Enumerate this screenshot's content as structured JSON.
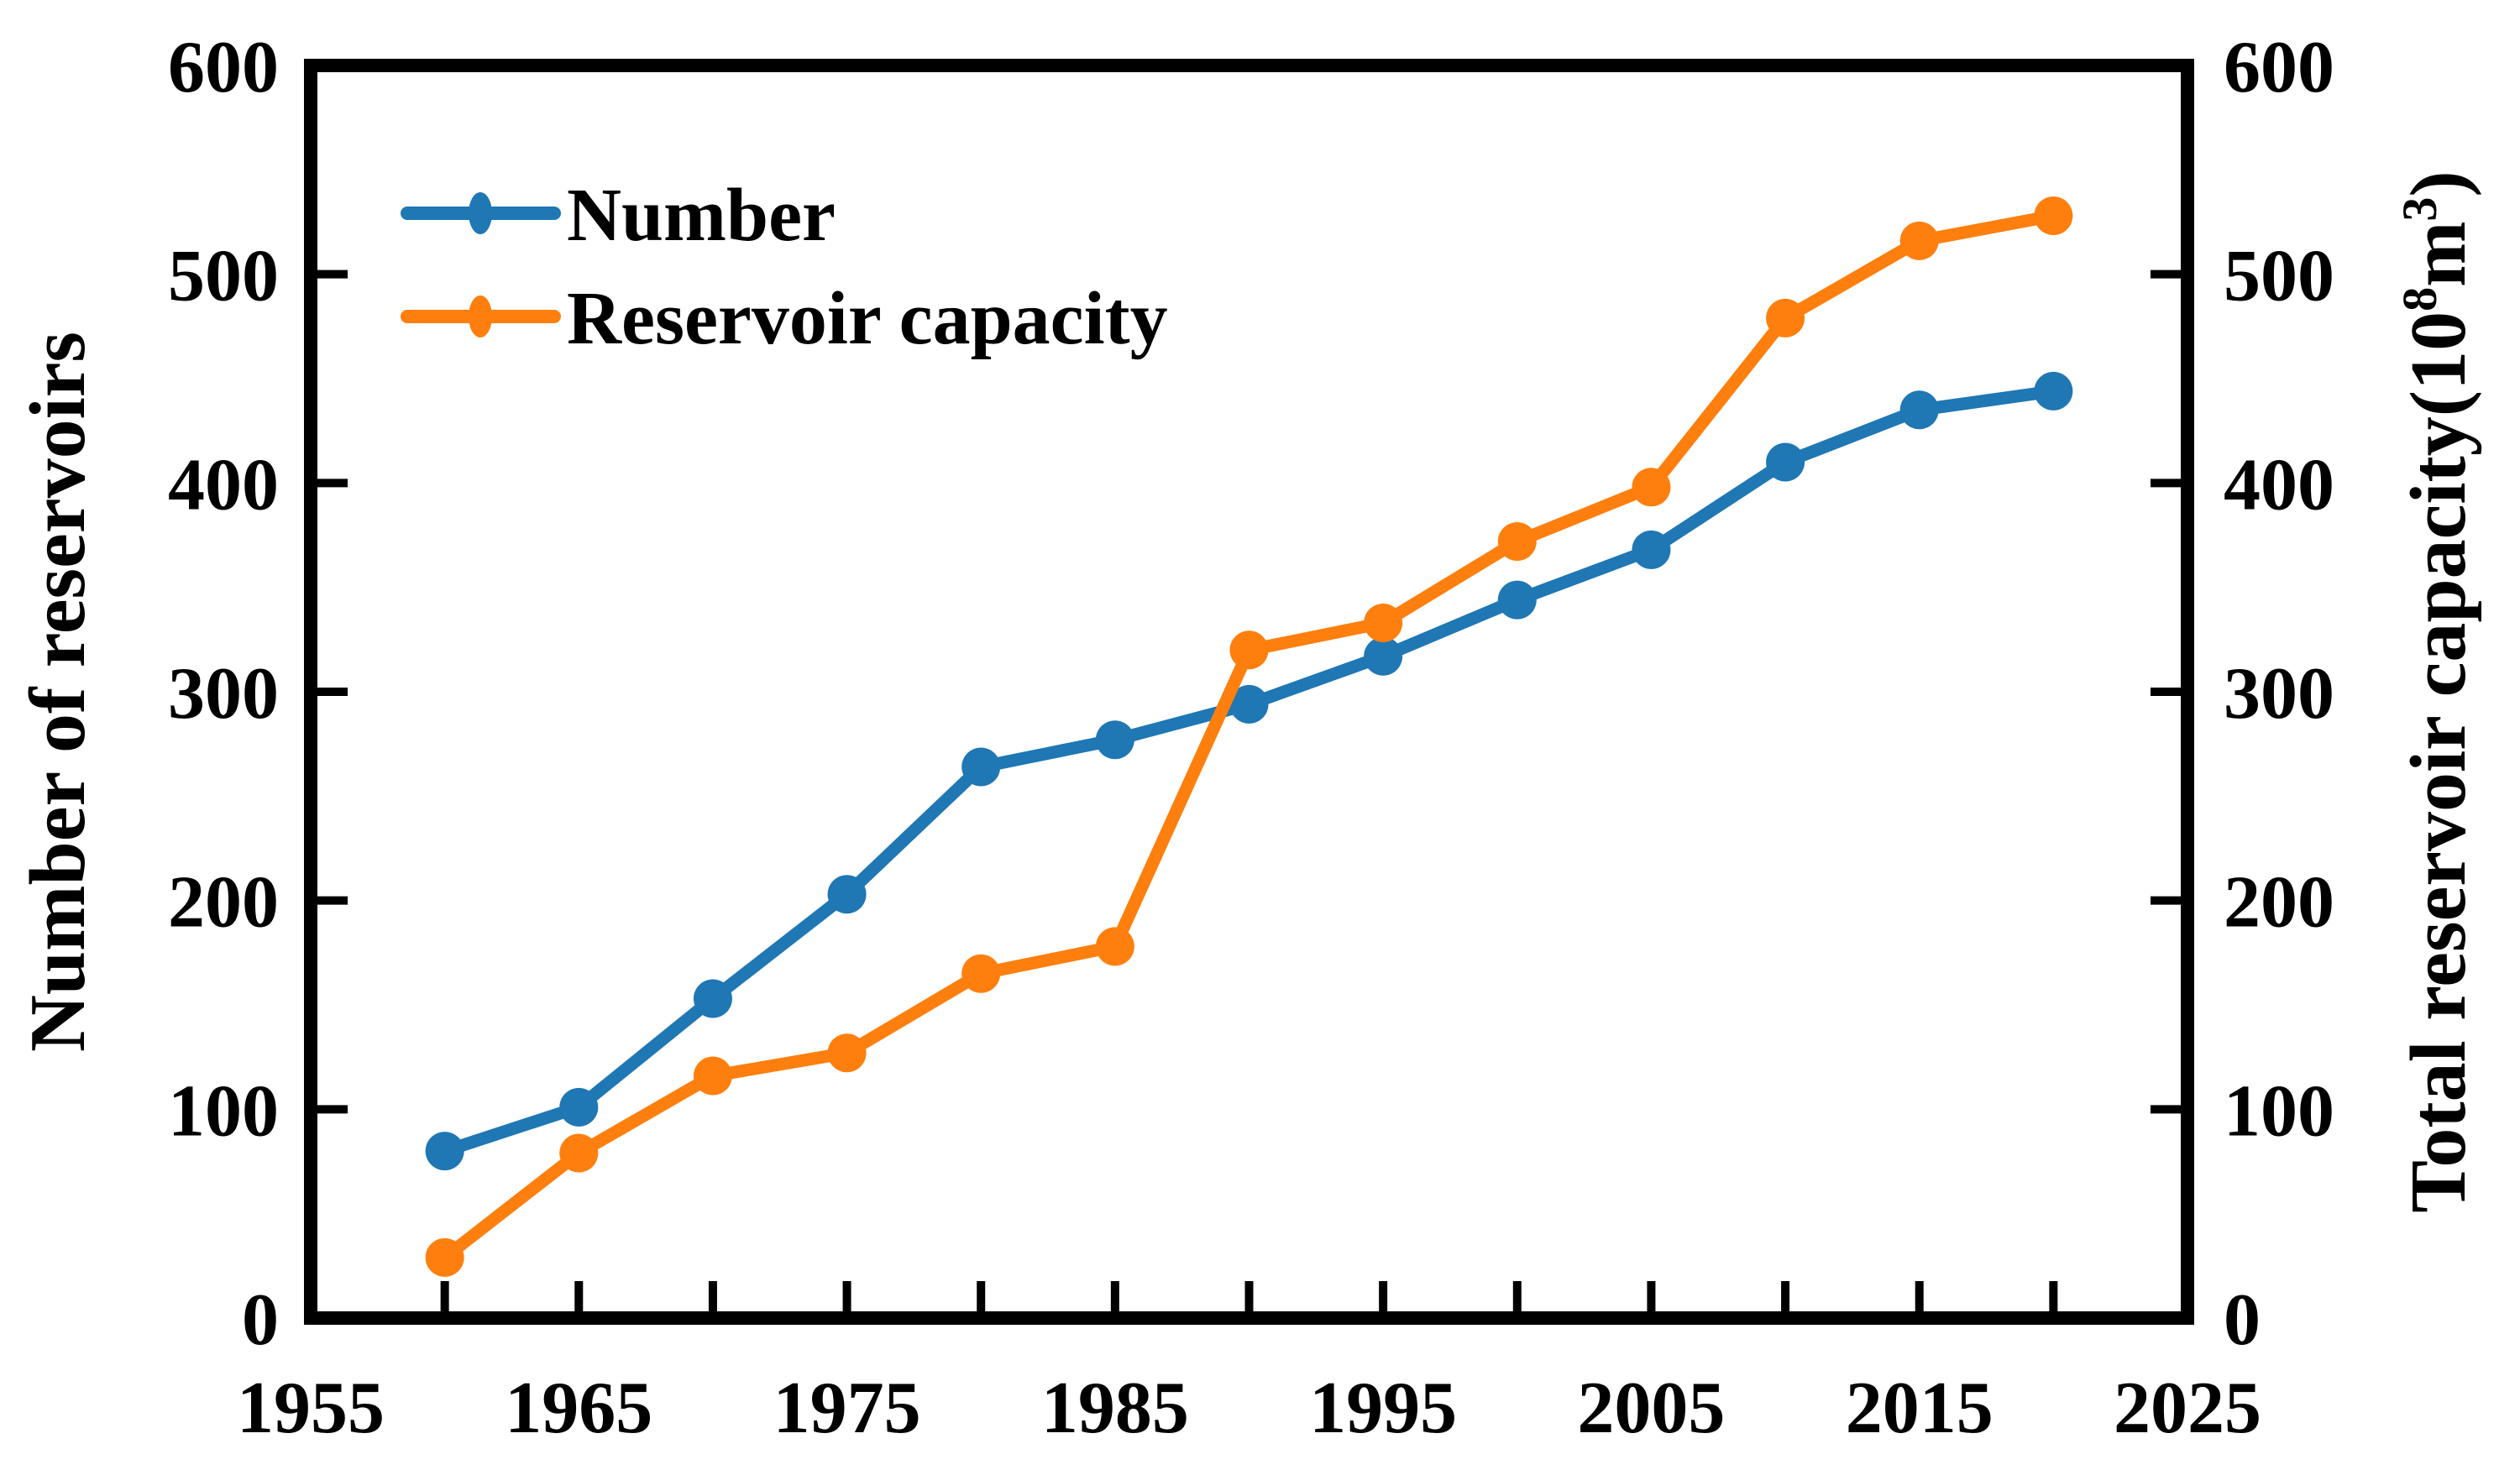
{
  "chart_data": {
    "type": "line",
    "title": "",
    "x": [
      1960,
      1965,
      1970,
      1975,
      1980,
      1985,
      1990,
      1995,
      2000,
      2005,
      2010,
      2015,
      2020
    ],
    "series": [
      {
        "name": "Number",
        "axis": "left",
        "color": "#1f77b4",
        "values": [
          80,
          101,
          153,
          203,
          264,
          277,
          294,
          317,
          344,
          368,
          410,
          435,
          444
        ]
      },
      {
        "name": "Reservoir capacity",
        "axis": "right",
        "color": "#ff7f0e",
        "values": [
          29,
          79,
          116,
          127,
          165,
          178,
          320,
          333,
          372,
          398,
          479,
          516,
          528
        ]
      }
    ],
    "x_axis": {
      "min": 1955,
      "max": 2025,
      "tick_step": 5,
      "label_step": 10,
      "tick_labels": [
        "1955",
        "1965",
        "1975",
        "1985",
        "1995",
        "2005",
        "2015",
        "2025"
      ]
    },
    "left_axis": {
      "title": "Number of reservoirs",
      "min": 0,
      "max": 600,
      "tick_step": 100,
      "tick_labels": [
        "0",
        "100",
        "200",
        "300",
        "400",
        "500",
        "600"
      ]
    },
    "right_axis": {
      "title": "Total reservoir capacity(10⁸m³)",
      "title_parts": [
        {
          "t": "Total reservoir capacity(10"
        },
        {
          "t": "8",
          "sup": true
        },
        {
          "t": "m"
        },
        {
          "t": "3",
          "sup": true
        },
        {
          "t": ")"
        }
      ],
      "min": 0,
      "max": 600,
      "tick_step": 100,
      "tick_labels": [
        "0",
        "100",
        "200",
        "300",
        "400",
        "500",
        "600"
      ]
    },
    "legend": [
      {
        "label": "Number",
        "color": "#1f77b4"
      },
      {
        "label": "Reservoir capacity",
        "color": "#ff7f0e"
      }
    ],
    "legend_position": "upper-left",
    "grid": false,
    "axis_color": "#000000"
  }
}
